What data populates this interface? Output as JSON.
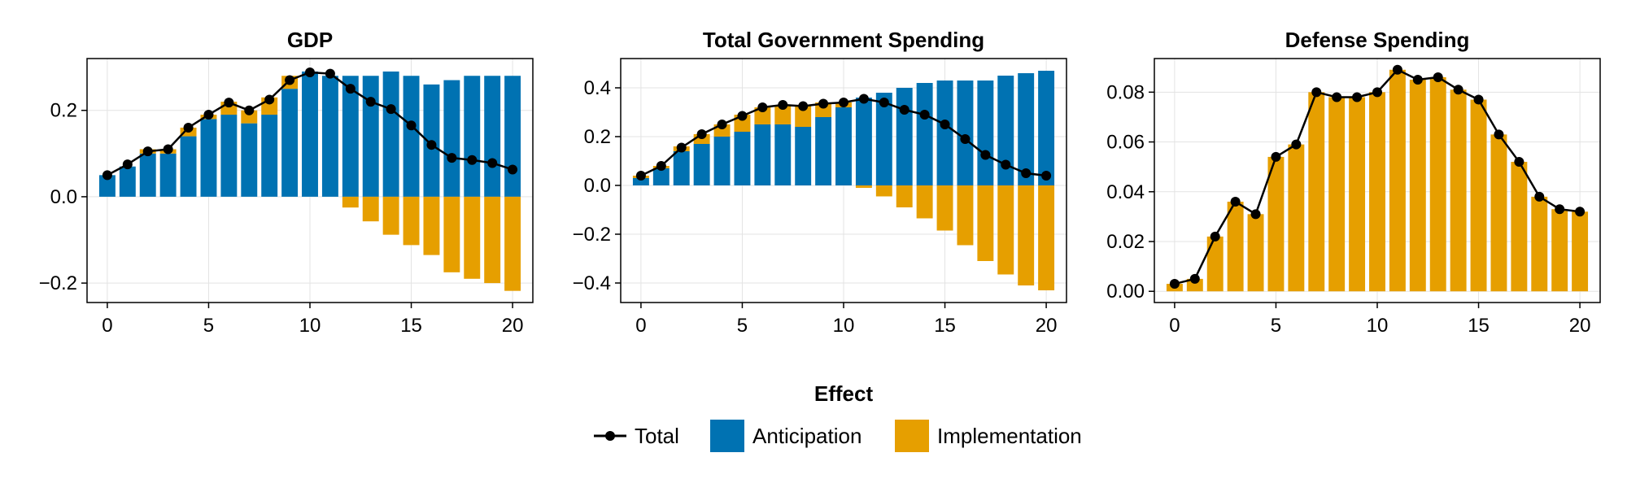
{
  "colors": {
    "anticipation": "#0072B2",
    "implementation": "#E69F00",
    "total": "#000000"
  },
  "legend": {
    "title": "Effect",
    "items": [
      {
        "label": "Total",
        "kind": "line-marker",
        "color_key": "total"
      },
      {
        "label": "Anticipation",
        "kind": "box",
        "color_key": "anticipation"
      },
      {
        "label": "Implementation",
        "kind": "box",
        "color_key": "implementation"
      }
    ]
  },
  "chart_data": [
    {
      "type": "bar",
      "stacked": true,
      "title": "GDP",
      "xlabel": "",
      "ylabel": "",
      "x": [
        0,
        1,
        2,
        3,
        4,
        5,
        6,
        7,
        8,
        9,
        10,
        11,
        12,
        13,
        14,
        15,
        16,
        17,
        18,
        19,
        20
      ],
      "xlim": [
        -1,
        21
      ],
      "ylim": [
        -0.245,
        0.32
      ],
      "xticks": [
        0,
        5,
        10,
        15,
        20
      ],
      "xtick_labels": [
        "0",
        "5",
        "10",
        "15",
        "20"
      ],
      "yticks": [
        -0.2,
        0.0,
        0.2
      ],
      "ytick_labels": [
        "−0.2",
        "0.0",
        "0.2"
      ],
      "grid": true,
      "series": [
        {
          "name": "Anticipation",
          "kind": "bar",
          "color_key": "anticipation",
          "values": [
            0.05,
            0.07,
            0.1,
            0.1,
            0.14,
            0.18,
            0.19,
            0.17,
            0.19,
            0.25,
            0.29,
            0.28,
            0.28,
            0.28,
            0.29,
            0.28,
            0.26,
            0.27,
            0.28,
            0.28,
            0.28
          ]
        },
        {
          "name": "Implementation",
          "kind": "bar",
          "color_key": "implementation",
          "values": [
            0.0,
            0.0,
            0.01,
            0.01,
            0.02,
            0.01,
            0.03,
            0.03,
            0.04,
            0.03,
            0.0,
            0.0,
            -0.025,
            -0.057,
            -0.088,
            -0.112,
            -0.135,
            -0.175,
            -0.19,
            -0.2,
            -0.218
          ]
        },
        {
          "name": "Total",
          "kind": "line",
          "color_key": "total",
          "values": [
            0.05,
            0.075,
            0.105,
            0.11,
            0.16,
            0.19,
            0.218,
            0.2,
            0.225,
            0.27,
            0.288,
            0.285,
            0.25,
            0.22,
            0.203,
            0.165,
            0.12,
            0.09,
            0.085,
            0.078,
            0.063
          ]
        }
      ]
    },
    {
      "type": "bar",
      "stacked": true,
      "title": "Total Government Spending",
      "xlabel": "",
      "ylabel": "",
      "x": [
        0,
        1,
        2,
        3,
        4,
        5,
        6,
        7,
        8,
        9,
        10,
        11,
        12,
        13,
        14,
        15,
        16,
        17,
        18,
        19,
        20
      ],
      "xlim": [
        -1,
        21
      ],
      "ylim": [
        -0.48,
        0.52
      ],
      "xticks": [
        0,
        5,
        10,
        15,
        20
      ],
      "xtick_labels": [
        "0",
        "5",
        "10",
        "15",
        "20"
      ],
      "yticks": [
        -0.4,
        -0.2,
        0.0,
        0.2,
        0.4
      ],
      "ytick_labels": [
        "−0.4",
        "−0.2",
        "0.0",
        "0.2",
        "0.4"
      ],
      "grid": true,
      "series": [
        {
          "name": "Anticipation",
          "kind": "bar",
          "color_key": "anticipation",
          "values": [
            0.03,
            0.07,
            0.14,
            0.17,
            0.2,
            0.22,
            0.25,
            0.25,
            0.24,
            0.28,
            0.32,
            0.36,
            0.38,
            0.4,
            0.42,
            0.43,
            0.43,
            0.43,
            0.45,
            0.46,
            0.47
          ]
        },
        {
          "name": "Implementation",
          "kind": "bar",
          "color_key": "implementation",
          "values": [
            0.01,
            0.01,
            0.02,
            0.04,
            0.05,
            0.07,
            0.07,
            0.08,
            0.09,
            0.06,
            0.02,
            -0.01,
            -0.045,
            -0.09,
            -0.135,
            -0.185,
            -0.245,
            -0.31,
            -0.365,
            -0.41,
            -0.43
          ]
        },
        {
          "name": "Total",
          "kind": "line",
          "color_key": "total",
          "values": [
            0.04,
            0.08,
            0.155,
            0.21,
            0.25,
            0.285,
            0.32,
            0.33,
            0.325,
            0.335,
            0.34,
            0.355,
            0.34,
            0.31,
            0.29,
            0.25,
            0.19,
            0.125,
            0.085,
            0.05,
            0.04
          ]
        }
      ]
    },
    {
      "type": "bar",
      "stacked": true,
      "title": "Defense Spending",
      "xlabel": "",
      "ylabel": "",
      "x": [
        0,
        1,
        2,
        3,
        4,
        5,
        6,
        7,
        8,
        9,
        10,
        11,
        12,
        13,
        14,
        15,
        16,
        17,
        18,
        19,
        20
      ],
      "xlim": [
        -1,
        21
      ],
      "ylim": [
        -0.0045,
        0.0935
      ],
      "xticks": [
        0,
        5,
        10,
        15,
        20
      ],
      "xtick_labels": [
        "0",
        "5",
        "10",
        "15",
        "20"
      ],
      "yticks": [
        0.0,
        0.02,
        0.04,
        0.06,
        0.08
      ],
      "ytick_labels": [
        "0.00",
        "0.02",
        "0.04",
        "0.06",
        "0.08"
      ],
      "grid": true,
      "series": [
        {
          "name": "Anticipation",
          "kind": "bar",
          "color_key": "anticipation",
          "values": [
            0,
            0,
            0,
            0,
            0,
            0,
            0,
            0,
            0,
            0,
            0,
            0,
            0,
            0,
            0,
            0,
            0,
            0,
            0,
            0,
            0
          ]
        },
        {
          "name": "Implementation",
          "kind": "bar",
          "color_key": "implementation",
          "values": [
            0.003,
            0.005,
            0.022,
            0.036,
            0.031,
            0.054,
            0.059,
            0.08,
            0.078,
            0.078,
            0.08,
            0.089,
            0.085,
            0.086,
            0.081,
            0.077,
            0.063,
            0.052,
            0.038,
            0.033,
            0.032
          ]
        },
        {
          "name": "Total",
          "kind": "line",
          "color_key": "total",
          "values": [
            0.003,
            0.005,
            0.022,
            0.036,
            0.031,
            0.054,
            0.059,
            0.08,
            0.078,
            0.078,
            0.08,
            0.089,
            0.085,
            0.086,
            0.081,
            0.077,
            0.063,
            0.052,
            0.038,
            0.033,
            0.032
          ]
        }
      ]
    }
  ]
}
